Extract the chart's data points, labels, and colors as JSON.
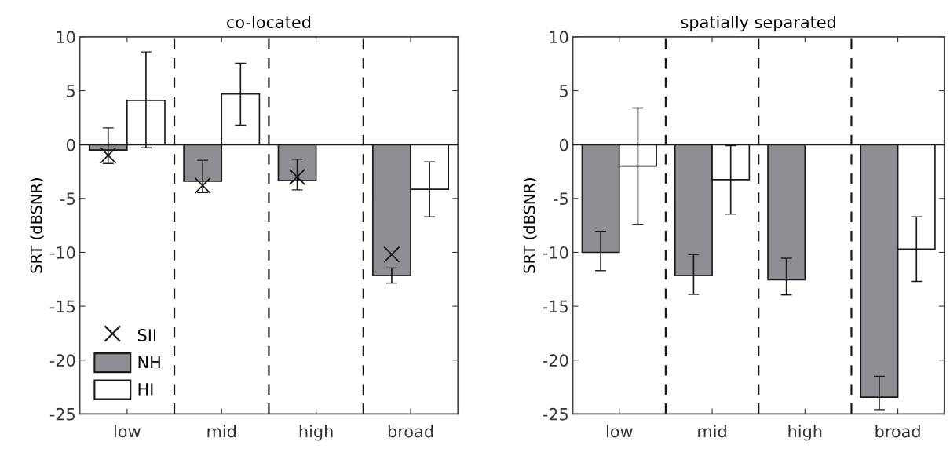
{
  "chart_data": [
    {
      "type": "bar",
      "title": "co-located",
      "ylabel": "SRT (dBSNR)",
      "categories": [
        "low",
        "mid",
        "high",
        "broad"
      ],
      "ylim": [
        -25,
        10
      ],
      "yticks": [
        -25,
        -20,
        -15,
        -10,
        -5,
        0,
        5,
        10
      ],
      "legend": "bottom left",
      "grid": false,
      "series": [
        {
          "name": "NH",
          "color": "#8e8e93",
          "values": [
            -0.5,
            -3.4,
            -3.35,
            -12.15
          ],
          "errors": [
            [
              -1.75,
              1.55
            ],
            [
              -4.45,
              -1.45
            ],
            [
              -4.2,
              -1.35
            ],
            [
              -12.85,
              -11.45
            ]
          ]
        },
        {
          "name": "HI",
          "color": "#ffffff",
          "values": [
            4.1,
            4.7,
            null,
            -4.15
          ],
          "errors": [
            [
              -0.3,
              8.6
            ],
            [
              1.8,
              7.55
            ],
            null,
            [
              -6.7,
              -1.6
            ]
          ]
        },
        {
          "name": "SII",
          "type": "scatter",
          "marker": "cross",
          "color": "#1a1a1a",
          "x": [
            "low",
            "mid",
            "high",
            "broad"
          ],
          "values": [
            -1.0,
            -3.8,
            -3.0,
            -10.2
          ]
        }
      ],
      "ref_lines": [
        {
          "axis": "y",
          "value": 0,
          "color": "#1a1a1a",
          "line_style": "solid"
        }
      ]
    },
    {
      "type": "bar",
      "title": "spatially separated",
      "ylabel": "SRT (dBSNR)",
      "categories": [
        "low",
        "mid",
        "high",
        "broad"
      ],
      "ylim": [
        -25,
        10
      ],
      "yticks": [
        -25,
        -20,
        -15,
        -10,
        -5,
        0,
        5,
        10
      ],
      "grid": false,
      "series": [
        {
          "color": "#8e8e93",
          "values": [
            -10.0,
            -12.15,
            -12.55,
            -23.45
          ],
          "errors": [
            [
              -11.7,
              -8.05
            ],
            [
              -13.9,
              -10.2
            ],
            [
              -13.95,
              -10.55
            ],
            [
              -24.6,
              -21.5
            ]
          ]
        },
        {
          "color": "#ffffff",
          "values": [
            -2.0,
            -3.25,
            null,
            -9.7
          ],
          "errors": [
            [
              -7.4,
              3.4
            ],
            [
              -6.45,
              -0.1
            ],
            null,
            [
              -12.7,
              -6.7
            ]
          ]
        }
      ],
      "ref_lines": [
        {
          "axis": "y",
          "value": 0,
          "color": "#1a1a1a",
          "line_style": "solid"
        }
      ]
    }
  ]
}
